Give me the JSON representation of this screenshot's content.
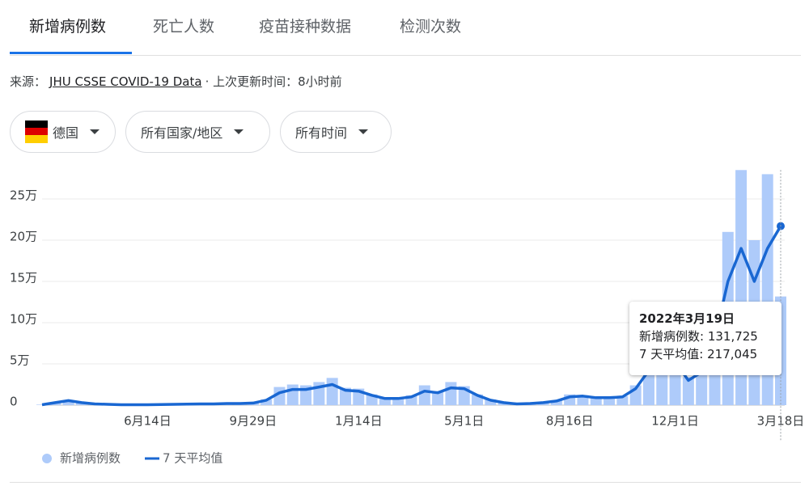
{
  "tabs": [
    "新增病例数",
    "死亡人数",
    "疫苗接种数据",
    "检测次数"
  ],
  "source": {
    "prefix": "来源：",
    "link": "JHU CSSE COVID-19 Data",
    "suffix": "· 上次更新时间：8小时前"
  },
  "filters": [
    "德国",
    "所有国家/地区",
    "所有时间"
  ],
  "chart_data": {
    "type": "combo",
    "categories": [
      null,
      null,
      null,
      null,
      null,
      null,
      null,
      null,
      "6月14日",
      null,
      null,
      null,
      null,
      null,
      null,
      null,
      "9月29日",
      null,
      null,
      null,
      null,
      null,
      null,
      null,
      "1月14日",
      null,
      null,
      null,
      null,
      null,
      null,
      null,
      "5月1日",
      null,
      null,
      null,
      null,
      null,
      null,
      null,
      "8月16日",
      null,
      null,
      null,
      null,
      null,
      null,
      null,
      "12月1日",
      null,
      null,
      null,
      null,
      null,
      null,
      null,
      "3月18日"
    ],
    "series": [
      {
        "name": "新增病例数",
        "type": "bar",
        "color": "#aecbfa",
        "values": [
          600,
          3500,
          6000,
          3200,
          1600,
          1100,
          600,
          600,
          600,
          800,
          1100,
          1300,
          1600,
          1700,
          2200,
          2300,
          2800,
          7000,
          22000,
          25000,
          24000,
          28000,
          33000,
          21000,
          20000,
          13000,
          9000,
          9000,
          12000,
          24000,
          17000,
          28000,
          23000,
          13000,
          7000,
          3300,
          1700,
          2200,
          3400,
          6000,
          13000,
          12000,
          10000,
          10000,
          11000,
          24000,
          52000,
          65000,
          60000,
          34000,
          46000,
          95000,
          210000,
          285000,
          200000,
          280000,
          131725
        ]
      },
      {
        "name": "7 天平均值",
        "type": "line",
        "color": "#1967d2",
        "values": [
          500,
          3000,
          5500,
          3000,
          1500,
          1000,
          500,
          500,
          500,
          700,
          1000,
          1200,
          1500,
          1500,
          2000,
          2000,
          2500,
          6000,
          15000,
          19000,
          19000,
          22000,
          25000,
          18000,
          17000,
          12000,
          8000,
          8000,
          10000,
          17000,
          15000,
          21000,
          20000,
          12000,
          6000,
          3000,
          1500,
          2000,
          3000,
          5000,
          10000,
          11000,
          9000,
          9000,
          10000,
          20000,
          42000,
          55000,
          52000,
          30000,
          40000,
          80000,
          150000,
          190000,
          150000,
          190000,
          217045
        ]
      }
    ],
    "ylim": [
      0,
      285000
    ],
    "yticks": [
      0,
      {
        "value": 50000,
        "label": "5万"
      },
      {
        "value": 100000,
        "label": "10万"
      },
      {
        "value": 150000,
        "label": "15万"
      },
      {
        "value": 200000,
        "label": "20万"
      },
      {
        "value": 250000,
        "label": "25万"
      }
    ],
    "grid": true,
    "tooltip": {
      "title": "2022年3月19日",
      "lines": [
        "新增病例数: 131,725",
        "7 天平均值: 217,045"
      ]
    }
  }
}
